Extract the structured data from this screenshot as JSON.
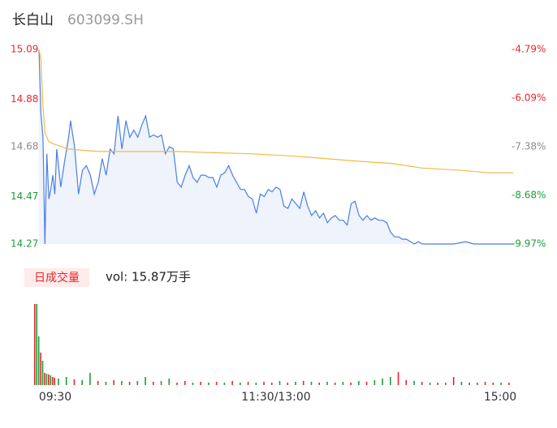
{
  "chart_data": {
    "type": "intraday",
    "title": "长白山",
    "subtitle": "603099.SH",
    "xlim": [
      0,
      240
    ],
    "xticks": [
      {
        "value": 0,
        "label": "09:30"
      },
      {
        "value": 120,
        "label": "11:30/13:00"
      },
      {
        "value": 240,
        "label": "15:00"
      }
    ],
    "ylim": [
      14.27,
      15.09
    ],
    "yticks": [
      15.09,
      14.88,
      14.68,
      14.47,
      14.27
    ],
    "y2lim": [
      -9.97,
      -4.79
    ],
    "y2ticks": [
      {
        "value": -4.79,
        "label": "-4.79%"
      },
      {
        "value": -6.09,
        "label": "-6.09%"
      },
      {
        "value": -7.38,
        "label": "-7.38%"
      },
      {
        "value": -8.68,
        "label": "-8.68%"
      },
      {
        "value": -9.97,
        "label": "-9.97%"
      }
    ],
    "tick_colors": [
      "#e8262c",
      "#e8262c",
      "#8a8a8a",
      "#1f9d3a",
      "#1f9d3a"
    ],
    "series": [
      {
        "color": "#4a7fe0",
        "fill": "#eef3fc",
        "x": [
          0,
          1,
          2,
          3,
          4,
          5,
          6,
          7,
          8,
          9,
          11,
          13,
          15,
          16,
          18,
          20,
          22,
          24,
          26,
          28,
          30,
          32,
          34,
          36,
          38,
          40,
          42,
          44,
          46,
          48,
          50,
          52,
          54,
          56,
          58,
          60,
          62,
          64,
          66,
          68,
          70,
          72,
          74,
          76,
          78,
          80,
          82,
          84,
          86,
          88,
          90,
          92,
          94,
          96,
          98,
          100,
          102,
          104,
          106,
          108,
          110,
          112,
          114,
          116,
          118,
          120,
          122,
          124,
          126,
          128,
          130,
          132,
          134,
          136,
          138,
          140,
          142,
          144,
          146,
          148,
          150,
          152,
          154,
          156,
          158,
          160,
          162,
          164,
          166,
          168,
          170,
          172,
          174,
          176,
          178,
          180,
          182,
          184,
          186,
          188,
          190,
          192,
          194,
          196,
          200,
          210,
          216,
          220,
          230,
          240
        ],
        "values": [
          15.09,
          14.82,
          14.72,
          14.27,
          14.65,
          14.46,
          14.5,
          14.56,
          14.48,
          14.67,
          14.51,
          14.62,
          14.72,
          14.79,
          14.68,
          14.48,
          14.58,
          14.6,
          14.56,
          14.48,
          14.53,
          14.63,
          14.56,
          14.67,
          14.65,
          14.81,
          14.67,
          14.79,
          14.72,
          14.75,
          14.72,
          14.77,
          14.81,
          14.72,
          14.73,
          14.72,
          14.73,
          14.65,
          14.68,
          14.67,
          14.53,
          14.51,
          14.56,
          14.6,
          14.55,
          14.53,
          14.56,
          14.56,
          14.55,
          14.55,
          14.51,
          14.56,
          14.57,
          14.6,
          14.56,
          14.53,
          14.5,
          14.5,
          14.47,
          14.46,
          14.4,
          14.48,
          14.47,
          14.5,
          14.49,
          14.51,
          14.5,
          14.43,
          14.42,
          14.46,
          14.44,
          14.42,
          14.49,
          14.43,
          14.39,
          14.41,
          14.38,
          14.4,
          14.36,
          14.38,
          14.39,
          14.37,
          14.37,
          14.35,
          14.44,
          14.45,
          14.39,
          14.37,
          14.39,
          14.37,
          14.38,
          14.37,
          14.37,
          14.36,
          14.32,
          14.3,
          14.3,
          14.29,
          14.29,
          14.28,
          14.27,
          14.28,
          14.27,
          14.27,
          14.27,
          14.27,
          14.28,
          14.27,
          14.27,
          14.27
        ]
      },
      {
        "color": "#f5b942",
        "x": [
          0,
          1,
          2,
          3,
          5,
          8,
          15,
          30,
          70,
          108,
          130,
          145,
          160,
          178,
          186,
          194,
          215,
          228,
          240
        ],
        "values": [
          15.09,
          15.05,
          14.85,
          14.74,
          14.7,
          14.69,
          14.67,
          14.66,
          14.66,
          14.65,
          14.64,
          14.63,
          14.62,
          14.61,
          14.6,
          14.59,
          14.58,
          14.57,
          14.57
        ]
      }
    ],
    "volume": {
      "badge": "日成交量",
      "label": "vol: 15.87万手",
      "ylim": [
        0,
        10000
      ],
      "up_color": "#e8262c",
      "down_color": "#1f9d3a",
      "x": [
        0,
        1,
        2,
        3,
        4,
        5,
        6,
        7,
        8,
        9,
        10,
        12,
        16,
        20,
        24,
        28,
        32,
        36,
        40,
        44,
        48,
        52,
        56,
        60,
        64,
        68,
        72,
        76,
        80,
        84,
        88,
        92,
        96,
        100,
        104,
        108,
        112,
        116,
        120,
        124,
        128,
        132,
        136,
        140,
        144,
        148,
        152,
        156,
        160,
        164,
        168,
        172,
        176,
        180,
        184,
        188,
        192,
        196,
        200,
        204,
        208,
        212,
        216,
        220,
        224,
        228,
        232,
        236,
        240
      ],
      "values": [
        10000,
        10000,
        6000,
        4000,
        3000,
        1500,
        1400,
        1300,
        1200,
        1000,
        900,
        800,
        1000,
        700,
        600,
        1500,
        500,
        400,
        600,
        500,
        400,
        500,
        1000,
        400,
        500,
        800,
        300,
        500,
        300,
        400,
        300,
        400,
        300,
        500,
        300,
        400,
        300,
        400,
        300,
        500,
        300,
        400,
        500,
        400,
        300,
        400,
        300,
        400,
        300,
        500,
        400,
        600,
        800,
        1000,
        1600,
        600,
        500,
        400,
        300,
        300,
        300,
        1000,
        400,
        300,
        300,
        400,
        300,
        300,
        300
      ],
      "direction": [
        "up",
        "down",
        "down",
        "up",
        "down",
        "up",
        "down",
        "up",
        "down",
        "up",
        "up",
        "down",
        "down",
        "up",
        "down",
        "down",
        "up",
        "down",
        "up",
        "down",
        "up",
        "down",
        "down",
        "up",
        "down",
        "down",
        "up",
        "up",
        "down",
        "up",
        "down",
        "up",
        "down",
        "up",
        "down",
        "up",
        "down",
        "up",
        "up",
        "down",
        "up",
        "down",
        "up",
        "down",
        "up",
        "down",
        "up",
        "down",
        "up",
        "down",
        "up",
        "down",
        "down",
        "down",
        "up",
        "up",
        "down",
        "up",
        "down",
        "up",
        "down",
        "up",
        "down",
        "up",
        "down",
        "up",
        "up",
        "down",
        "up"
      ]
    }
  }
}
